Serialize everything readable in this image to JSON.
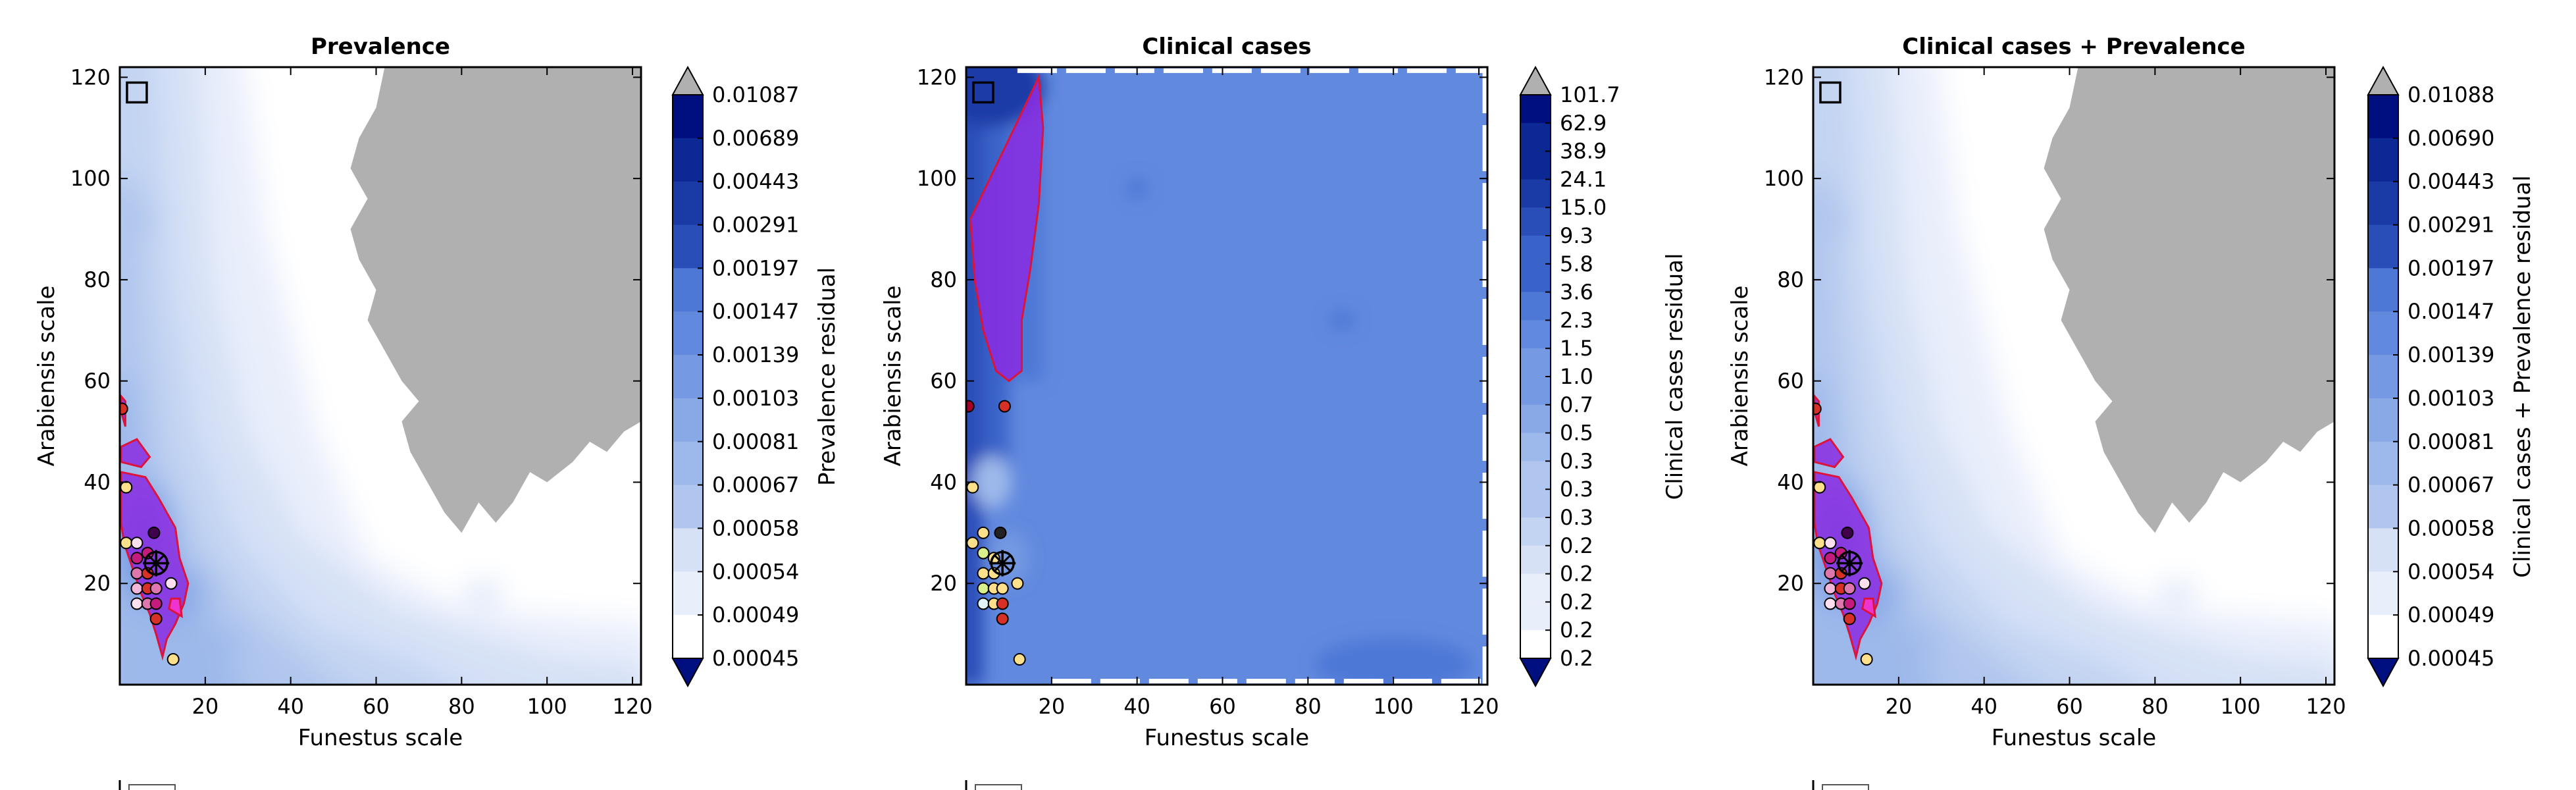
{
  "chart_data": [
    {
      "type": "heatmap",
      "title": "Prevalence",
      "xlabel": "Funestus scale",
      "ylabel": "Arabiensis scale",
      "xlim": [
        0,
        122
      ],
      "ylim": [
        0,
        122
      ],
      "xticks": [
        "20",
        "40",
        "60",
        "80",
        "100",
        "120"
      ],
      "yticks": [
        "20",
        "40",
        "60",
        "80",
        "100",
        "120"
      ],
      "colorbar_label": "Prevalence residual",
      "colorbar_levels": [
        "0.01087",
        "0.00689",
        "0.00443",
        "0.00291",
        "0.00197",
        "0.00147",
        "0.00139",
        "0.00103",
        "0.00081",
        "0.00067",
        "0.00058",
        "0.00054",
        "0.00049",
        "0.00045"
      ],
      "colorbar_extend": "both",
      "grid": false,
      "masked_region": "upper-right (grey)",
      "best_fit_marker": {
        "x": 8.5,
        "y": 24
      },
      "square_marker": {
        "x": 4,
        "y": 117
      },
      "best_fit_regions": [
        {
          "name": "left-strip",
          "points": [
            [
              0.3,
              54
            ],
            [
              0.3,
              57
            ],
            [
              1.3,
              56
            ],
            [
              1.3,
              51
            ]
          ]
        },
        {
          "name": "mid-patch",
          "points": [
            [
              0.3,
              47
            ],
            [
              4,
              48.5
            ],
            [
              7,
              45
            ],
            [
              5,
              43
            ],
            [
              0.3,
              44
            ]
          ]
        },
        {
          "name": "main",
          "points": [
            [
              0.3,
              42
            ],
            [
              6,
              41
            ],
            [
              9,
              37
            ],
            [
              13,
              31
            ],
            [
              14,
              25
            ],
            [
              16,
              20
            ],
            [
              15,
              16
            ],
            [
              13,
              12
            ],
            [
              11,
              9
            ],
            [
              10,
              5.5
            ],
            [
              8.5,
              10
            ],
            [
              7,
              14
            ],
            [
              5,
              18
            ],
            [
              3,
              23
            ],
            [
              1,
              28
            ],
            [
              0.3,
              32
            ]
          ]
        },
        {
          "name": "tip",
          "points": [
            [
              11.5,
              15
            ],
            [
              14.5,
              13.5
            ],
            [
              14,
              17
            ],
            [
              12,
              17
            ]
          ]
        }
      ],
      "points": [
        {
          "x": 0.5,
          "y": 54.5,
          "c": "#d73027"
        },
        {
          "x": 1.5,
          "y": 39,
          "c": "#fee08b"
        },
        {
          "x": 1.5,
          "y": 28,
          "c": "#fee08b"
        },
        {
          "x": 4,
          "y": 28,
          "c": "#fde0ef"
        },
        {
          "x": 4,
          "y": 25,
          "c": "#c51b7d"
        },
        {
          "x": 4,
          "y": 22,
          "c": "#de77ae"
        },
        {
          "x": 4,
          "y": 19,
          "c": "#f1b6da"
        },
        {
          "x": 4,
          "y": 16,
          "c": "#fde0ef"
        },
        {
          "x": 6.5,
          "y": 26,
          "c": "#c51b7d"
        },
        {
          "x": 6.5,
          "y": 22,
          "c": "#d73027"
        },
        {
          "x": 6.5,
          "y": 19,
          "c": "#d73027"
        },
        {
          "x": 6.5,
          "y": 16,
          "c": "#de77ae"
        },
        {
          "x": 8,
          "y": 30,
          "c": "#40004b"
        },
        {
          "x": 8.5,
          "y": 19,
          "c": "#de77ae"
        },
        {
          "x": 8.5,
          "y": 16,
          "c": "#c51b7d"
        },
        {
          "x": 8.5,
          "y": 13,
          "c": "#d73027"
        },
        {
          "x": 12,
          "y": 20,
          "c": "#fde0ef"
        },
        {
          "x": 12.5,
          "y": 5,
          "c": "#fee08b"
        }
      ]
    },
    {
      "type": "heatmap",
      "title": "Clinical cases",
      "xlabel": "Funestus scale",
      "ylabel": "Arabiensis scale",
      "xlim": [
        0,
        122
      ],
      "ylim": [
        0,
        122
      ],
      "xticks": [
        "20",
        "40",
        "60",
        "80",
        "100",
        "120"
      ],
      "yticks": [
        "20",
        "40",
        "60",
        "80",
        "100",
        "120"
      ],
      "colorbar_label": "Clinical cases residual",
      "colorbar_levels": [
        "101.7",
        "62.9",
        "38.9",
        "24.1",
        "15.0",
        "9.3",
        "5.8",
        "3.6",
        "2.3",
        "1.5",
        "1.0",
        "0.7",
        "0.5",
        "0.3",
        "0.3",
        "0.3",
        "0.2",
        "0.2",
        "0.2",
        "0.2",
        "0.2"
      ],
      "colorbar_extend": "both",
      "grid": false,
      "best_fit_marker": {
        "x": 8.5,
        "y": 24
      },
      "square_marker": {
        "x": 4,
        "y": 117
      },
      "best_fit_regions": [
        {
          "name": "main",
          "points": [
            [
              1,
              92
            ],
            [
              17,
              120
            ],
            [
              18,
              110
            ],
            [
              17,
              95
            ],
            [
              15,
              82
            ],
            [
              13,
              72
            ],
            [
              13,
              62
            ],
            [
              10,
              60
            ],
            [
              7,
              62
            ],
            [
              4,
              70
            ],
            [
              2,
              80
            ]
          ]
        }
      ],
      "points": [
        {
          "x": 0.5,
          "y": 55,
          "c": "#a50026"
        },
        {
          "x": 1.5,
          "y": 39,
          "c": "#fee08b"
        },
        {
          "x": 1.5,
          "y": 28,
          "c": "#fee08b"
        },
        {
          "x": 4,
          "y": 30,
          "c": "#fee08b"
        },
        {
          "x": 4,
          "y": 26,
          "c": "#d9ef8b"
        },
        {
          "x": 4,
          "y": 22,
          "c": "#fee08b"
        },
        {
          "x": 4,
          "y": 19,
          "c": "#d9ef8b"
        },
        {
          "x": 4,
          "y": 16,
          "c": "#e0f3f8"
        },
        {
          "x": 6.5,
          "y": 25,
          "c": "#fee08b"
        },
        {
          "x": 6.5,
          "y": 22,
          "c": "#fee08b"
        },
        {
          "x": 6.5,
          "y": 19,
          "c": "#fee08b"
        },
        {
          "x": 6.5,
          "y": 16,
          "c": "#fee08b"
        },
        {
          "x": 8,
          "y": 30,
          "c": "#222222"
        },
        {
          "x": 8.5,
          "y": 19,
          "c": "#fee08b"
        },
        {
          "x": 8.5,
          "y": 16,
          "c": "#d73027"
        },
        {
          "x": 8.5,
          "y": 13,
          "c": "#d73027"
        },
        {
          "x": 12,
          "y": 20,
          "c": "#fee08b"
        },
        {
          "x": 12.5,
          "y": 5,
          "c": "#fee08b"
        },
        {
          "x": 9,
          "y": 55,
          "c": "#d73027"
        }
      ]
    },
    {
      "type": "heatmap",
      "title": "Clinical cases + Prevalence",
      "xlabel": "Funestus scale",
      "ylabel": "Arabiensis scale",
      "xlim": [
        0,
        122
      ],
      "ylim": [
        0,
        122
      ],
      "xticks": [
        "20",
        "40",
        "60",
        "80",
        "100",
        "120"
      ],
      "yticks": [
        "20",
        "40",
        "60",
        "80",
        "100",
        "120"
      ],
      "colorbar_label": "Clinical cases + Prevalence residual",
      "colorbar_levels": [
        "0.01088",
        "0.00690",
        "0.00443",
        "0.00291",
        "0.00197",
        "0.00147",
        "0.00139",
        "0.00103",
        "0.00081",
        "0.00067",
        "0.00058",
        "0.00054",
        "0.00049",
        "0.00045"
      ],
      "colorbar_extend": "both",
      "grid": false,
      "masked_region": "upper-right (grey)",
      "best_fit_marker": {
        "x": 8.5,
        "y": 24
      },
      "square_marker": {
        "x": 4,
        "y": 117
      },
      "best_fit_regions": [
        {
          "name": "left-strip",
          "points": [
            [
              0.3,
              54
            ],
            [
              0.3,
              57
            ],
            [
              1.3,
              56
            ],
            [
              1.3,
              51
            ]
          ]
        },
        {
          "name": "mid-patch",
          "points": [
            [
              0.3,
              47
            ],
            [
              4,
              48.5
            ],
            [
              7,
              45
            ],
            [
              5,
              43
            ],
            [
              0.3,
              44
            ]
          ]
        },
        {
          "name": "main",
          "points": [
            [
              0.3,
              42
            ],
            [
              6,
              41
            ],
            [
              9,
              37
            ],
            [
              13,
              31
            ],
            [
              14,
              25
            ],
            [
              16,
              20
            ],
            [
              15,
              16
            ],
            [
              13,
              12
            ],
            [
              11,
              9
            ],
            [
              10,
              5.5
            ],
            [
              8.5,
              10
            ],
            [
              7,
              14
            ],
            [
              5,
              18
            ],
            [
              3,
              23
            ],
            [
              1,
              28
            ],
            [
              0.3,
              32
            ]
          ]
        },
        {
          "name": "tip",
          "points": [
            [
              11.5,
              15
            ],
            [
              14.5,
              13.5
            ],
            [
              14,
              17
            ],
            [
              12,
              17
            ]
          ]
        }
      ],
      "points": [
        {
          "x": 0.5,
          "y": 54.5,
          "c": "#d73027"
        },
        {
          "x": 1.5,
          "y": 39,
          "c": "#fee08b"
        },
        {
          "x": 1.5,
          "y": 28,
          "c": "#fee08b"
        },
        {
          "x": 4,
          "y": 28,
          "c": "#fde0ef"
        },
        {
          "x": 4,
          "y": 25,
          "c": "#c51b7d"
        },
        {
          "x": 4,
          "y": 22,
          "c": "#de77ae"
        },
        {
          "x": 4,
          "y": 19,
          "c": "#f1b6da"
        },
        {
          "x": 4,
          "y": 16,
          "c": "#fde0ef"
        },
        {
          "x": 6.5,
          "y": 26,
          "c": "#c51b7d"
        },
        {
          "x": 6.5,
          "y": 22,
          "c": "#d73027"
        },
        {
          "x": 6.5,
          "y": 19,
          "c": "#d73027"
        },
        {
          "x": 6.5,
          "y": 16,
          "c": "#de77ae"
        },
        {
          "x": 8,
          "y": 30,
          "c": "#40004b"
        },
        {
          "x": 8.5,
          "y": 19,
          "c": "#de77ae"
        },
        {
          "x": 8.5,
          "y": 16,
          "c": "#c51b7d"
        },
        {
          "x": 8.5,
          "y": 13,
          "c": "#d73027"
        },
        {
          "x": 12,
          "y": 20,
          "c": "#fde0ef"
        },
        {
          "x": 12.5,
          "y": 5,
          "c": "#fee08b"
        }
      ]
    }
  ],
  "colors": {
    "masked": "#b0b0b0",
    "best_fit_fill": "#8a2be2",
    "best_fit_edge": "#dc143c",
    "tip_fill": "#ff33cc",
    "colormap": [
      "#ffffff",
      "#e9eefb",
      "#d6e1f6",
      "#c3d4f2",
      "#b0c6ee",
      "#9db8ea",
      "#89a9e6",
      "#7599e2",
      "#6189de",
      "#4e78d6",
      "#3a63c9",
      "#2a4eb8",
      "#1a3aa6",
      "#0c2893",
      "#000f80"
    ]
  }
}
